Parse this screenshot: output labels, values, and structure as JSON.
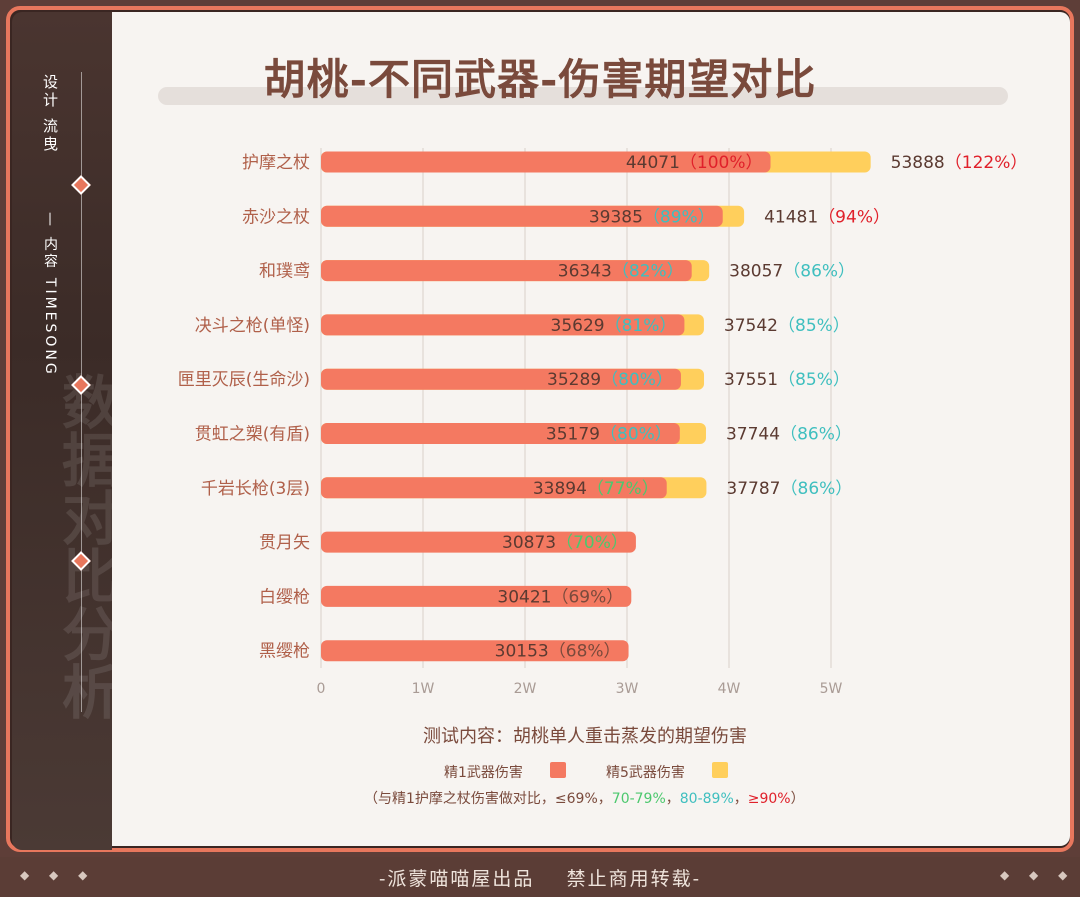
{
  "sidebar": {
    "credit": "设计 流曳",
    "brand": "— 内容 TIMESONG",
    "deco_text": "数据对比分析"
  },
  "footer": {
    "text": "-派蒙喵喵屋出品    禁止商用转载-",
    "dots_left": "◆ ◆ ◆",
    "dots_right": "◆ ◆ ◆"
  },
  "legend": {
    "r1_label": "精1武器伤害",
    "r5_label": "精5武器伤害",
    "note_prefix": "（与精1护摩之杖伤害做对比，",
    "note_le69": "≤69%",
    "note_sep1": "，",
    "note_70_79": "70-79%",
    "note_sep2": "，",
    "note_80_89": "80-89%",
    "note_sep3": "，",
    "note_ge90": "≥90%",
    "note_suffix": "）"
  },
  "chart_data": {
    "type": "bar",
    "orientation": "horizontal",
    "title": "胡桃-不同武器-伤害期望对比",
    "subtitle": "测试内容：胡桃单人重击蒸发的期望伤害",
    "xlim": [
      0,
      50000
    ],
    "x_ticks": [
      {
        "value": 0,
        "label": "0"
      },
      {
        "value": 10000,
        "label": "1W"
      },
      {
        "value": 20000,
        "label": "2W"
      },
      {
        "value": 30000,
        "label": "3W"
      },
      {
        "value": 40000,
        "label": "4W"
      },
      {
        "value": 50000,
        "label": "5W"
      }
    ],
    "grid": true,
    "colors": {
      "r1": "#f47961",
      "r5": "#ffcf5c",
      "le69": "#7a4a3c",
      "70_79": "#4cc86e",
      "80_89": "#3fbfbf",
      "ge90": "#e0202a"
    },
    "categories": [
      "护摩之杖",
      "赤沙之杖",
      "和璞鸢",
      "决斗之枪(单怪)",
      "匣里灭辰(生命沙)",
      "贯虹之槊(有盾)",
      "千岩长枪(3层)",
      "贯月矢",
      "白缨枪",
      "黑缨枪"
    ],
    "series": [
      {
        "name": "精1武器伤害",
        "values": [
          44071,
          39385,
          36343,
          35629,
          35289,
          35179,
          33894,
          30873,
          30421,
          30153
        ],
        "labels": [
          "（100%）",
          "（89%）",
          "（82%）",
          "（81%）",
          "（80%）",
          "（80%）",
          "（77%）",
          "（70%）",
          "（69%）",
          "（68%）"
        ],
        "label_colors": [
          "#e0202a",
          "#3fbfbf",
          "#3fbfbf",
          "#3fbfbf",
          "#3fbfbf",
          "#3fbfbf",
          "#4cc86e",
          "#4cc86e",
          "#7a4a3c",
          "#7a4a3c"
        ]
      },
      {
        "name": "精5武器伤害",
        "values": [
          53888,
          41481,
          38057,
          37542,
          37551,
          37744,
          37787,
          null,
          null,
          null
        ],
        "labels": [
          "（122%）",
          "（94%）",
          "（86%）",
          "（85%）",
          "（85%）",
          "（86%）",
          "（86%）",
          "",
          "",
          ""
        ],
        "label_colors": [
          "#e0202a",
          "#e0202a",
          "#3fbfbf",
          "#3fbfbf",
          "#3fbfbf",
          "#3fbfbf",
          "#3fbfbf",
          "",
          "",
          ""
        ]
      }
    ]
  }
}
